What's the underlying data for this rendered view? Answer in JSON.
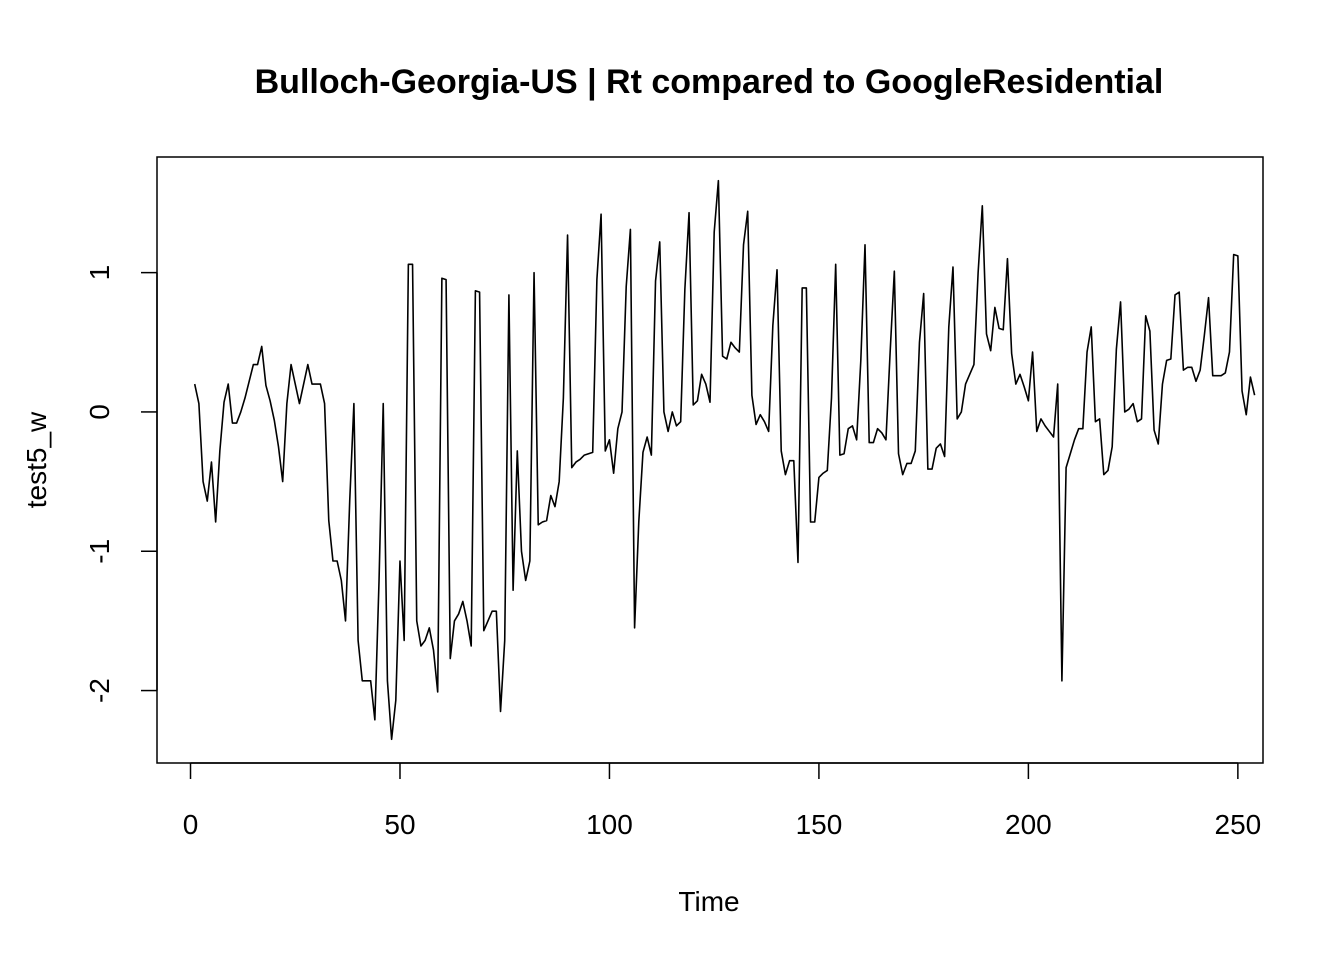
{
  "chart_data": {
    "type": "line",
    "title": "Bulloch-Georgia-US | Rt compared to GoogleResidential",
    "xlabel": "Time",
    "ylabel": "test5_w",
    "xlim": [
      -8,
      256
    ],
    "ylim": [
      -2.52,
      1.83
    ],
    "x_ticks": [
      0,
      50,
      100,
      150,
      200,
      250
    ],
    "y_ticks": [
      -2,
      -1,
      0,
      1
    ],
    "grid": false,
    "legend": "none",
    "line_color": "#000000",
    "x_start": 1,
    "values": [
      0.2,
      0.06,
      -0.5,
      -0.64,
      -0.36,
      -0.79,
      -0.28,
      0.07,
      0.2,
      -0.08,
      -0.08,
      0.0,
      0.1,
      0.22,
      0.34,
      0.34,
      0.47,
      0.19,
      0.08,
      -0.06,
      -0.25,
      -0.5,
      0.06,
      0.34,
      0.2,
      0.06,
      0.2,
      0.34,
      0.2,
      0.2,
      0.2,
      0.06,
      -0.78,
      -1.07,
      -1.07,
      -1.21,
      -1.5,
      -0.64,
      0.06,
      -1.64,
      -1.93,
      -1.93,
      -1.93,
      -2.21,
      -1.21,
      0.06,
      -1.93,
      -2.35,
      -2.07,
      -1.07,
      -1.64,
      1.06,
      1.06,
      -1.5,
      -1.68,
      -1.64,
      -1.55,
      -1.71,
      -2.01,
      0.96,
      0.95,
      -1.77,
      -1.5,
      -1.45,
      -1.36,
      -1.5,
      -1.68,
      0.87,
      0.86,
      -1.57,
      -1.5,
      -1.43,
      -1.43,
      -2.15,
      -1.64,
      0.84,
      -1.28,
      -0.28,
      -1.0,
      -1.21,
      -1.07,
      1.0,
      -0.81,
      -0.79,
      -0.78,
      -0.6,
      -0.68,
      -0.5,
      0.1,
      1.27,
      -0.4,
      -0.36,
      -0.34,
      -0.31,
      -0.3,
      -0.29,
      0.95,
      1.42,
      -0.28,
      -0.2,
      -0.44,
      -0.12,
      0.0,
      0.9,
      1.31,
      -1.55,
      -0.79,
      -0.29,
      -0.18,
      -0.31,
      0.94,
      1.22,
      0.0,
      -0.14,
      0.0,
      -0.1,
      -0.07,
      0.88,
      1.43,
      0.05,
      0.08,
      0.27,
      0.2,
      0.07,
      1.29,
      1.66,
      0.4,
      0.38,
      0.5,
      0.46,
      0.43,
      1.2,
      1.44,
      0.12,
      -0.09,
      -0.02,
      -0.07,
      -0.14,
      0.62,
      1.02,
      -0.28,
      -0.45,
      -0.35,
      -0.35,
      -1.08,
      0.89,
      0.89,
      -0.79,
      -0.79,
      -0.47,
      -0.44,
      -0.42,
      0.1,
      1.06,
      -0.31,
      -0.3,
      -0.12,
      -0.1,
      -0.2,
      0.37,
      1.2,
      -0.22,
      -0.22,
      -0.12,
      -0.15,
      -0.2,
      0.43,
      1.01,
      -0.3,
      -0.45,
      -0.37,
      -0.37,
      -0.28,
      0.5,
      0.85,
      -0.41,
      -0.41,
      -0.26,
      -0.23,
      -0.32,
      0.61,
      1.04,
      -0.05,
      0.0,
      0.2,
      0.27,
      0.34,
      1.0,
      1.48,
      0.56,
      0.44,
      0.75,
      0.6,
      0.59,
      1.1,
      0.42,
      0.2,
      0.27,
      0.18,
      0.08,
      0.43,
      -0.14,
      -0.05,
      -0.1,
      -0.14,
      -0.18,
      0.2,
      -1.93,
      -0.4,
      -0.3,
      -0.2,
      -0.12,
      -0.12,
      0.43,
      0.61,
      -0.07,
      -0.05,
      -0.45,
      -0.42,
      -0.25,
      0.45,
      0.79,
      0.0,
      0.02,
      0.06,
      -0.07,
      -0.05,
      0.69,
      0.58,
      -0.13,
      -0.23,
      0.2,
      0.37,
      0.38,
      0.84,
      0.86,
      0.3,
      0.32,
      0.32,
      0.22,
      0.3,
      0.55,
      0.82,
      0.26,
      0.26,
      0.26,
      0.28,
      0.43,
      1.13,
      1.12,
      0.15,
      -0.02,
      0.25,
      0.12
    ]
  }
}
